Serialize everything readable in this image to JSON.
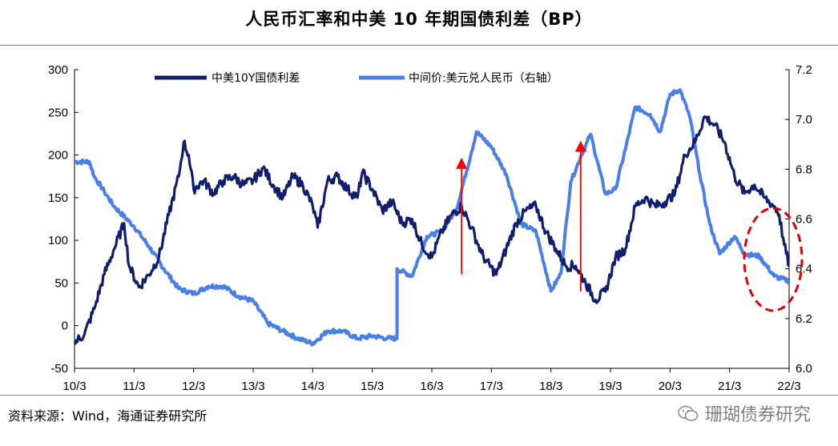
{
  "page": {
    "title": "人民币汇率和中美 10 年期国债利差（BP）",
    "source": "资料来源：Wind，海通证券研究所",
    "watermark": "珊瑚债券研究"
  },
  "colors": {
    "spread": "#0f1e6e",
    "fx": "#4a7fe8",
    "arrow": "#ff0000",
    "circle": "#e00000"
  },
  "chart_data": {
    "type": "line",
    "x_ticks": [
      "10/3",
      "11/3",
      "12/3",
      "13/3",
      "14/3",
      "15/3",
      "16/3",
      "17/3",
      "18/3",
      "19/3",
      "20/3",
      "21/3",
      "22/3"
    ],
    "left_axis": {
      "ylim": [
        -50,
        300
      ],
      "ticks": [
        -50,
        0,
        50,
        100,
        150,
        200,
        250,
        300
      ]
    },
    "right_axis": {
      "ylim": [
        6.0,
        7.2
      ],
      "ticks": [
        "6.0",
        "6.2",
        "6.4",
        "6.6",
        "6.8",
        "7.0",
        "7.2"
      ]
    },
    "legend_position": "top",
    "series": [
      {
        "name": "中美10Y国债利差",
        "axis": "left",
        "points": [
          [
            "2010-03",
            -20
          ],
          [
            "2010-05",
            -10
          ],
          [
            "2010-07",
            20
          ],
          [
            "2010-09",
            60
          ],
          [
            "2010-11",
            90
          ],
          [
            "2011-01",
            120
          ],
          [
            "2011-02",
            70
          ],
          [
            "2011-04",
            45
          ],
          [
            "2011-06",
            60
          ],
          [
            "2011-08",
            80
          ],
          [
            "2011-10",
            130
          ],
          [
            "2011-12",
            175
          ],
          [
            "2012-01",
            215
          ],
          [
            "2012-02",
            200
          ],
          [
            "2012-03",
            160
          ],
          [
            "2012-05",
            170
          ],
          [
            "2012-07",
            155
          ],
          [
            "2012-09",
            170
          ],
          [
            "2012-11",
            175
          ],
          [
            "2013-01",
            165
          ],
          [
            "2013-03",
            170
          ],
          [
            "2013-05",
            185
          ],
          [
            "2013-07",
            165
          ],
          [
            "2013-09",
            150
          ],
          [
            "2013-11",
            175
          ],
          [
            "2014-01",
            165
          ],
          [
            "2014-03",
            140
          ],
          [
            "2014-04",
            115
          ],
          [
            "2014-06",
            170
          ],
          [
            "2014-08",
            175
          ],
          [
            "2014-10",
            160
          ],
          [
            "2014-12",
            150
          ],
          [
            "2015-01",
            180
          ],
          [
            "2015-03",
            160
          ],
          [
            "2015-05",
            135
          ],
          [
            "2015-07",
            145
          ],
          [
            "2015-09",
            120
          ],
          [
            "2015-11",
            125
          ],
          [
            "2016-01",
            95
          ],
          [
            "2016-03",
            80
          ],
          [
            "2016-05",
            110
          ],
          [
            "2016-07",
            130
          ],
          [
            "2016-09",
            140
          ],
          [
            "2016-11",
            115
          ],
          [
            "2017-01",
            85
          ],
          [
            "2017-02",
            75
          ],
          [
            "2017-04",
            60
          ],
          [
            "2017-06",
            90
          ],
          [
            "2017-08",
            120
          ],
          [
            "2017-10",
            135
          ],
          [
            "2017-12",
            140
          ],
          [
            "2018-02",
            110
          ],
          [
            "2018-04",
            90
          ],
          [
            "2018-06",
            70
          ],
          [
            "2018-08",
            70
          ],
          [
            "2018-10",
            50
          ],
          [
            "2018-12",
            30
          ],
          [
            "2019-02",
            40
          ],
          [
            "2019-04",
            80
          ],
          [
            "2019-06",
            90
          ],
          [
            "2019-08",
            140
          ],
          [
            "2019-10",
            150
          ],
          [
            "2019-12",
            140
          ],
          [
            "2020-02",
            145
          ],
          [
            "2020-04",
            155
          ],
          [
            "2020-06",
            200
          ],
          [
            "2020-08",
            215
          ],
          [
            "2020-10",
            245
          ],
          [
            "2020-12",
            235
          ],
          [
            "2021-02",
            215
          ],
          [
            "2021-04",
            175
          ],
          [
            "2021-06",
            155
          ],
          [
            "2021-08",
            165
          ],
          [
            "2021-10",
            150
          ],
          [
            "2021-12",
            140
          ],
          [
            "2022-01",
            130
          ],
          [
            "2022-02",
            95
          ],
          [
            "2022-03",
            70
          ]
        ]
      },
      {
        "name": "中间价:美元兑人民币（右轴）",
        "axis": "right",
        "points": [
          [
            "2010-03",
            6.83
          ],
          [
            "2010-06",
            6.83
          ],
          [
            "2010-07",
            6.77
          ],
          [
            "2010-09",
            6.71
          ],
          [
            "2010-11",
            6.65
          ],
          [
            "2011-03",
            6.57
          ],
          [
            "2011-06",
            6.49
          ],
          [
            "2011-09",
            6.4
          ],
          [
            "2011-12",
            6.32
          ],
          [
            "2012-03",
            6.3
          ],
          [
            "2012-06",
            6.33
          ],
          [
            "2012-09",
            6.33
          ],
          [
            "2012-12",
            6.29
          ],
          [
            "2013-03",
            6.27
          ],
          [
            "2013-06",
            6.18
          ],
          [
            "2013-09",
            6.15
          ],
          [
            "2013-12",
            6.12
          ],
          [
            "2014-03",
            6.1
          ],
          [
            "2014-06",
            6.15
          ],
          [
            "2014-09",
            6.15
          ],
          [
            "2014-12",
            6.12
          ],
          [
            "2015-03",
            6.13
          ],
          [
            "2015-06",
            6.12
          ],
          [
            "2015-08",
            6.12
          ],
          [
            "2015-08",
            6.4
          ],
          [
            "2015-11",
            6.37
          ],
          [
            "2016-02",
            6.53
          ],
          [
            "2016-05",
            6.55
          ],
          [
            "2016-08",
            6.64
          ],
          [
            "2016-11",
            6.87
          ],
          [
            "2016-12",
            6.95
          ],
          [
            "2017-03",
            6.89
          ],
          [
            "2017-06",
            6.78
          ],
          [
            "2017-09",
            6.58
          ],
          [
            "2017-12",
            6.55
          ],
          [
            "2018-03",
            6.31
          ],
          [
            "2018-05",
            6.38
          ],
          [
            "2018-07",
            6.75
          ],
          [
            "2018-09",
            6.85
          ],
          [
            "2018-11",
            6.94
          ],
          [
            "2019-02",
            6.7
          ],
          [
            "2019-04",
            6.72
          ],
          [
            "2019-06",
            6.88
          ],
          [
            "2019-08",
            7.05
          ],
          [
            "2019-11",
            7.02
          ],
          [
            "2020-01",
            6.95
          ],
          [
            "2020-03",
            7.1
          ],
          [
            "2020-05",
            7.12
          ],
          [
            "2020-07",
            7.01
          ],
          [
            "2020-09",
            6.78
          ],
          [
            "2020-11",
            6.58
          ],
          [
            "2021-01",
            6.46
          ],
          [
            "2021-04",
            6.53
          ],
          [
            "2021-06",
            6.46
          ],
          [
            "2021-09",
            6.45
          ],
          [
            "2021-12",
            6.37
          ],
          [
            "2022-03",
            6.35
          ]
        ]
      }
    ],
    "annotations": [
      "upward red arrow late 2016",
      "upward red arrow late 2018",
      "red dashed ellipse around early 2022"
    ]
  }
}
